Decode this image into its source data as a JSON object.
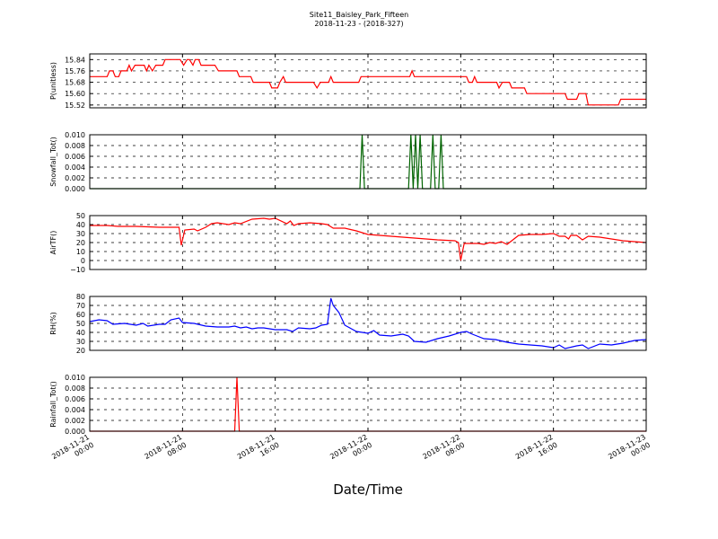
{
  "figure": {
    "title": "Site11_Baisley_Park_Fifteen",
    "subtitle": "2018-11-23 - (2018-327)",
    "xlabel": "Date/Time",
    "x_tick_labels": [
      [
        "2018-11-21",
        "00:00"
      ],
      [
        "2018-11-21",
        "08:00"
      ],
      [
        "2018-11-21",
        "16:00"
      ],
      [
        "2018-11-22",
        "00:00"
      ],
      [
        "2018-11-22",
        "08:00"
      ],
      [
        "2018-11-22",
        "16:00"
      ],
      [
        "2018-11-23",
        "00:00"
      ]
    ],
    "x_range_hours": [
      0,
      48
    ],
    "grid": "dashed, on"
  },
  "chart_data": [
    {
      "type": "line",
      "ylabel": "P(unitless)",
      "color": "#ff0000",
      "ylim": [
        15.5,
        15.88
      ],
      "yticks": [
        15.52,
        15.6,
        15.68,
        15.76,
        15.84
      ],
      "ytick_labels": [
        "15.52",
        "15.60",
        "15.68",
        "15.76",
        "15.84"
      ],
      "points": [
        [
          0,
          15.72
        ],
        [
          1.5,
          15.72
        ],
        [
          1.7,
          15.76
        ],
        [
          2,
          15.76
        ],
        [
          2.2,
          15.72
        ],
        [
          2.5,
          15.72
        ],
        [
          2.7,
          15.76
        ],
        [
          3.2,
          15.76
        ],
        [
          3.4,
          15.8
        ],
        [
          3.6,
          15.76
        ],
        [
          3.9,
          15.8
        ],
        [
          4.7,
          15.8
        ],
        [
          4.9,
          15.76
        ],
        [
          5.1,
          15.8
        ],
        [
          5.4,
          15.76
        ],
        [
          5.7,
          15.8
        ],
        [
          6.3,
          15.8
        ],
        [
          6.5,
          15.84
        ],
        [
          7.8,
          15.84
        ],
        [
          8.1,
          15.8
        ],
        [
          8.4,
          15.84
        ],
        [
          8.6,
          15.84
        ],
        [
          8.9,
          15.8
        ],
        [
          9.1,
          15.84
        ],
        [
          9.4,
          15.84
        ],
        [
          9.6,
          15.8
        ],
        [
          10.8,
          15.8
        ],
        [
          11.1,
          15.76
        ],
        [
          12.7,
          15.76
        ],
        [
          12.9,
          15.72
        ],
        [
          13.9,
          15.72
        ],
        [
          14.1,
          15.68
        ],
        [
          15.5,
          15.68
        ],
        [
          15.7,
          15.64
        ],
        [
          16.2,
          15.64
        ],
        [
          16.4,
          15.68
        ],
        [
          16.7,
          15.72
        ],
        [
          16.9,
          15.68
        ],
        [
          19.3,
          15.68
        ],
        [
          19.6,
          15.64
        ],
        [
          19.9,
          15.68
        ],
        [
          20.6,
          15.68
        ],
        [
          20.8,
          15.72
        ],
        [
          21,
          15.68
        ],
        [
          23.2,
          15.68
        ],
        [
          23.4,
          15.72
        ],
        [
          27.6,
          15.72
        ],
        [
          27.8,
          15.76
        ],
        [
          28,
          15.72
        ],
        [
          32.5,
          15.72
        ],
        [
          32.7,
          15.68
        ],
        [
          33,
          15.68
        ],
        [
          33.2,
          15.72
        ],
        [
          33.4,
          15.68
        ],
        [
          35.1,
          15.68
        ],
        [
          35.3,
          15.64
        ],
        [
          35.6,
          15.68
        ],
        [
          36.2,
          15.68
        ],
        [
          36.4,
          15.64
        ],
        [
          37.5,
          15.64
        ],
        [
          37.7,
          15.6
        ],
        [
          41,
          15.6
        ],
        [
          41.2,
          15.56
        ],
        [
          42,
          15.56
        ],
        [
          42.2,
          15.6
        ],
        [
          42.8,
          15.6
        ],
        [
          43,
          15.52
        ],
        [
          45.6,
          15.52
        ],
        [
          45.8,
          15.56
        ],
        [
          48,
          15.56
        ]
      ]
    },
    {
      "type": "line",
      "ylabel": "Snowfall_Tot()",
      "color": "#006400",
      "ylim": [
        0,
        0.01
      ],
      "yticks": [
        0,
        0.002,
        0.004,
        0.006,
        0.008,
        0.01
      ],
      "ytick_labels": [
        "0.000",
        "0.002",
        "0.004",
        "0.006",
        "0.008",
        "0.010"
      ],
      "points": [
        [
          0,
          0
        ],
        [
          23.3,
          0
        ],
        [
          23.5,
          0.01
        ],
        [
          23.7,
          0
        ],
        [
          27.5,
          0
        ],
        [
          27.7,
          0.01
        ],
        [
          27.9,
          0
        ],
        [
          28.1,
          0.01
        ],
        [
          28.3,
          0
        ],
        [
          28.5,
          0.01
        ],
        [
          28.7,
          0
        ],
        [
          29.4,
          0
        ],
        [
          29.6,
          0.01
        ],
        [
          29.8,
          0
        ],
        [
          30.1,
          0
        ],
        [
          30.3,
          0.01
        ],
        [
          30.5,
          0
        ],
        [
          48,
          0
        ]
      ]
    },
    {
      "type": "line",
      "ylabel": "AirTF()",
      "color": "#ff0000",
      "ylim": [
        -10,
        50
      ],
      "yticks": [
        -10,
        0,
        10,
        20,
        30,
        40,
        50
      ],
      "ytick_labels": [
        "−10",
        "0",
        "10",
        "20",
        "30",
        "40",
        "50"
      ],
      "points": [
        [
          0,
          39
        ],
        [
          1.5,
          39
        ],
        [
          2.5,
          38
        ],
        [
          4,
          38
        ],
        [
          6,
          37
        ],
        [
          7.7,
          37
        ],
        [
          7.9,
          17
        ],
        [
          8.2,
          34
        ],
        [
          9,
          35
        ],
        [
          9.3,
          33
        ],
        [
          10,
          37
        ],
        [
          10.5,
          41
        ],
        [
          11,
          42
        ],
        [
          12,
          40
        ],
        [
          12.5,
          42
        ],
        [
          13,
          41
        ],
        [
          14,
          46
        ],
        [
          15,
          47
        ],
        [
          15.5,
          46
        ],
        [
          16,
          47
        ],
        [
          17,
          41
        ],
        [
          17.3,
          44
        ],
        [
          17.6,
          39
        ],
        [
          18,
          41
        ],
        [
          19,
          42
        ],
        [
          20,
          41
        ],
        [
          20.5,
          40
        ],
        [
          21,
          36
        ],
        [
          22,
          36
        ],
        [
          23,
          33
        ],
        [
          24,
          29
        ],
        [
          26,
          27
        ],
        [
          28,
          25
        ],
        [
          30,
          23
        ],
        [
          31.5,
          22
        ],
        [
          31.8,
          20
        ],
        [
          32,
          0
        ],
        [
          32.3,
          19
        ],
        [
          33.5,
          19
        ],
        [
          34,
          18
        ],
        [
          34.5,
          20
        ],
        [
          35,
          19
        ],
        [
          35.5,
          21
        ],
        [
          36,
          18
        ],
        [
          36.7,
          25
        ],
        [
          37,
          28
        ],
        [
          38,
          29
        ],
        [
          39,
          29
        ],
        [
          40,
          30
        ],
        [
          40.5,
          27
        ],
        [
          41,
          27
        ],
        [
          41.3,
          24
        ],
        [
          41.5,
          28
        ],
        [
          42,
          28
        ],
        [
          42.5,
          23
        ],
        [
          43,
          27
        ],
        [
          44,
          26
        ],
        [
          46,
          22
        ],
        [
          48,
          20
        ]
      ]
    },
    {
      "type": "line",
      "ylabel": "RH(%)",
      "color": "#0000ff",
      "ylim": [
        20,
        80
      ],
      "yticks": [
        20,
        30,
        40,
        50,
        60,
        70,
        80
      ],
      "ytick_labels": [
        "20",
        "30",
        "40",
        "50",
        "60",
        "70",
        "80"
      ],
      "points": [
        [
          0,
          52
        ],
        [
          0.8,
          54
        ],
        [
          1.5,
          53
        ],
        [
          2,
          49
        ],
        [
          3,
          50
        ],
        [
          4,
          48
        ],
        [
          4.6,
          50
        ],
        [
          5,
          47
        ],
        [
          6,
          49
        ],
        [
          6.5,
          49
        ],
        [
          7,
          54
        ],
        [
          7.7,
          56
        ],
        [
          8,
          51
        ],
        [
          9,
          50
        ],
        [
          10,
          47
        ],
        [
          11,
          46
        ],
        [
          12,
          46
        ],
        [
          12.5,
          47
        ],
        [
          13,
          45
        ],
        [
          13.5,
          46
        ],
        [
          14,
          44
        ],
        [
          14.5,
          45
        ],
        [
          15,
          45
        ],
        [
          16,
          43
        ],
        [
          17,
          43
        ],
        [
          17.5,
          41
        ],
        [
          18,
          45
        ],
        [
          19,
          44
        ],
        [
          19.5,
          45
        ],
        [
          20,
          48
        ],
        [
          20.5,
          49
        ],
        [
          20.8,
          78
        ],
        [
          21,
          70
        ],
        [
          21.5,
          62
        ],
        [
          22,
          48
        ],
        [
          23,
          41
        ],
        [
          24,
          39
        ],
        [
          24.5,
          42
        ],
        [
          25,
          37
        ],
        [
          26,
          36
        ],
        [
          27,
          38
        ],
        [
          27.5,
          36
        ],
        [
          28,
          30
        ],
        [
          29,
          29
        ],
        [
          30,
          33
        ],
        [
          31,
          36
        ],
        [
          32,
          40
        ],
        [
          32.5,
          41
        ],
        [
          33,
          38
        ],
        [
          34,
          33
        ],
        [
          35,
          32
        ],
        [
          36,
          29
        ],
        [
          37,
          27
        ],
        [
          38,
          26
        ],
        [
          39,
          25
        ],
        [
          40,
          23
        ],
        [
          40.5,
          26
        ],
        [
          41,
          22
        ],
        [
          42,
          25
        ],
        [
          42.5,
          26
        ],
        [
          43,
          22
        ],
        [
          44,
          27
        ],
        [
          45,
          26
        ],
        [
          46,
          28
        ],
        [
          47,
          31
        ],
        [
          48,
          32
        ]
      ]
    },
    {
      "type": "line",
      "ylabel": "Rainfall_Tot()",
      "color": "#ff0000",
      "ylim": [
        0,
        0.01
      ],
      "yticks": [
        0,
        0.002,
        0.004,
        0.006,
        0.008,
        0.01
      ],
      "ytick_labels": [
        "0.000",
        "0.002",
        "0.004",
        "0.006",
        "0.008",
        "0.010"
      ],
      "points": [
        [
          0,
          0
        ],
        [
          12.5,
          0
        ],
        [
          12.7,
          0.01
        ],
        [
          12.9,
          0
        ],
        [
          48,
          0
        ]
      ]
    }
  ]
}
